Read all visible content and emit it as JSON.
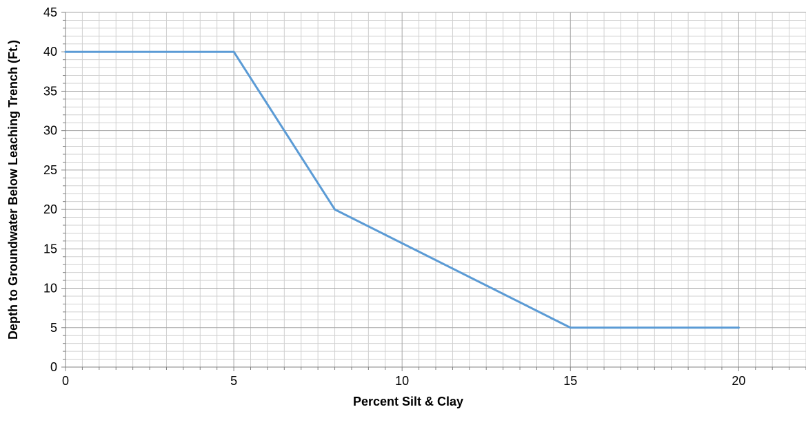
{
  "chart_data": {
    "type": "line",
    "title": "",
    "xlabel": "Percent Silt & Clay",
    "ylabel": "Depth to Groundwater Below Leaching Trench (Ft.)",
    "xlim": [
      0,
      22
    ],
    "ylim": [
      0,
      45
    ],
    "x_ticks": [
      0,
      5,
      10,
      15,
      20
    ],
    "y_ticks": [
      0,
      5,
      10,
      15,
      20,
      25,
      30,
      35,
      40,
      45
    ],
    "x_minor_step": 0.5,
    "y_minor_step": 1,
    "grid": true,
    "legend": "none",
    "series": [
      {
        "color": "#5b9bd5",
        "x": [
          0,
          5,
          8,
          15,
          20
        ],
        "y": [
          40,
          40,
          20,
          5,
          5
        ]
      }
    ]
  }
}
